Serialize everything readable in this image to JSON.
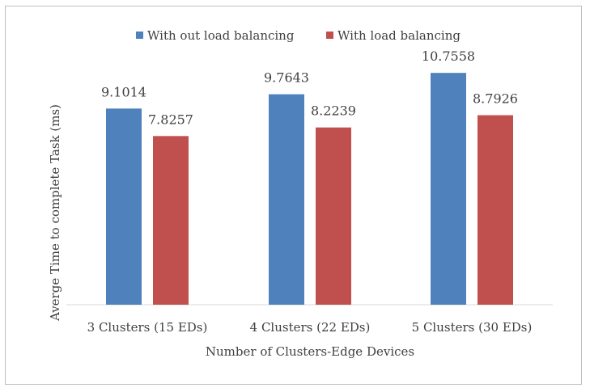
{
  "chart_data": {
    "type": "bar",
    "title": "",
    "xlabel": "Number of Clusters-Edge Devices",
    "ylabel": "Averge Time to complete Task (ms)",
    "categories": [
      "3 Clusters (15 EDs)",
      "4 Clusters (22 EDs)",
      "5 Clusters (30 EDs)"
    ],
    "series": [
      {
        "name": "With out load balancing",
        "values": [
          9.1014,
          9.7643,
          10.7558
        ],
        "labels": [
          "9.1014",
          "9.7643",
          "10.7558"
        ],
        "color": "#4f81bd"
      },
      {
        "name": "With load balancing",
        "values": [
          7.8257,
          8.2239,
          8.7926
        ],
        "labels": [
          "7.8257",
          "8.2239",
          "8.7926"
        ],
        "color": "#c0504d"
      }
    ],
    "ylim": [
      0,
      12
    ],
    "grid": false,
    "legend_position": "top-center"
  }
}
